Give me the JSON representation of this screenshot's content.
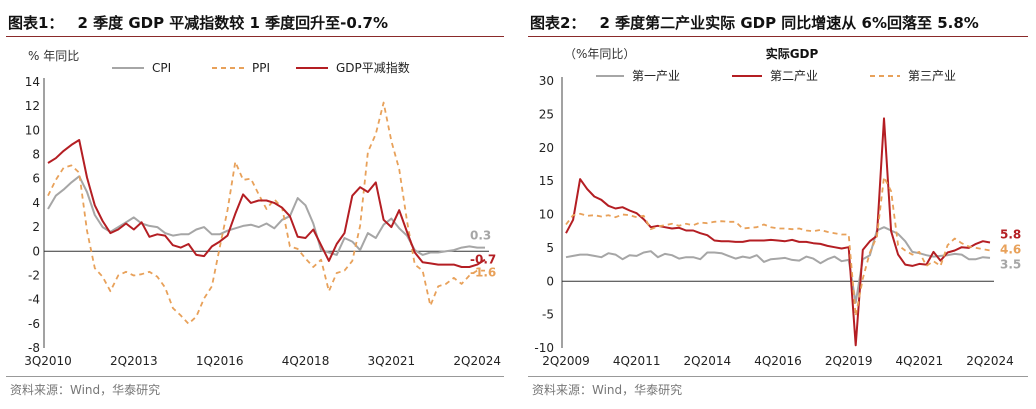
{
  "chart_data": [
    {
      "type": "line",
      "figure_label": "图表1：",
      "title": "2 季度 GDP 平减指数较 1 季度回升至-0.7%",
      "unit_label": "% 年同比",
      "source": "资料来源：Wind，华泰研究",
      "ylim": [
        -8,
        14
      ],
      "yticks": [
        "14",
        "12",
        "10",
        "8",
        "6",
        "4",
        "2",
        "0",
        "-2",
        "-4",
        "-6",
        "-8"
      ],
      "xticks": [
        "3Q2010",
        "2Q2013",
        "1Q2016",
        "4Q2018",
        "3Q2021",
        "2Q2024"
      ],
      "x_start": "3Q2010",
      "x_count": 57,
      "series": [
        {
          "name": "CPI",
          "color": "#a6a6a6",
          "dash": "solid",
          "values": [
            3.5,
            4.6,
            5.1,
            5.7,
            6.2,
            4.9,
            3.0,
            2.0,
            1.6,
            2.0,
            2.4,
            2.8,
            2.3,
            2.1,
            2.0,
            1.5,
            1.3,
            1.4,
            1.4,
            1.8,
            2.0,
            1.4,
            1.4,
            1.7,
            1.9,
            2.1,
            2.2,
            2.0,
            2.3,
            1.9,
            2.6,
            2.9,
            4.4,
            3.8,
            2.3,
            0.1,
            -0.1,
            -0.3,
            1.1,
            0.8,
            0.1,
            1.5,
            1.1,
            2.2,
            2.7,
            1.9,
            1.3,
            0.1,
            -0.3,
            -0.1,
            -0.1,
            0.0,
            0.1,
            0.3,
            0.4,
            0.3,
            0.3
          ],
          "end_label": "0.3"
        },
        {
          "name": "PPI",
          "color": "#e8a15a",
          "dash": "dashed",
          "values": [
            4.6,
            5.9,
            6.9,
            7.1,
            6.5,
            1.7,
            -1.4,
            -2.1,
            -3.3,
            -2.0,
            -1.7,
            -2.0,
            -1.9,
            -1.7,
            -2.1,
            -3.0,
            -4.7,
            -5.3,
            -6.0,
            -5.4,
            -3.9,
            -2.9,
            0.3,
            3.4,
            7.4,
            5.9,
            6.0,
            4.7,
            3.5,
            4.3,
            3.6,
            0.4,
            0.2,
            -0.6,
            -1.3,
            -0.7,
            -3.3,
            -1.8,
            -1.6,
            -0.8,
            2.1,
            8.2,
            9.7,
            12.3,
            9.1,
            6.8,
            2.5,
            -1.1,
            -1.6,
            -4.5,
            -2.9,
            -2.7,
            -2.2,
            -2.7,
            -2.0,
            -1.6,
            -1.6
          ],
          "end_label": "-1.6"
        },
        {
          "name": "GDP平减指数",
          "color": "#b41e23",
          "dash": "solid",
          "values": [
            7.3,
            7.7,
            8.3,
            8.8,
            9.2,
            6.1,
            3.8,
            2.5,
            1.5,
            1.8,
            2.3,
            1.8,
            2.4,
            1.2,
            1.4,
            1.3,
            0.5,
            0.3,
            0.6,
            -0.3,
            -0.4,
            0.4,
            0.8,
            1.3,
            3.1,
            4.7,
            4.0,
            4.2,
            4.2,
            4.0,
            3.6,
            2.9,
            1.2,
            1.1,
            1.8,
            0.5,
            -0.8,
            0.6,
            1.5,
            4.6,
            5.3,
            4.9,
            5.7,
            2.6,
            2.0,
            3.4,
            1.6,
            -0.1,
            -0.9,
            -1.0,
            -1.1,
            -1.1,
            -1.1,
            -1.3,
            -1.3,
            -1.1,
            -0.7
          ],
          "end_label": "-0.7"
        }
      ]
    },
    {
      "type": "line",
      "figure_label": "图表2：",
      "title": "2 季度第二产业实际 GDP 同比增速从 6%回落至 5.8%",
      "unit_label": "（%年同比）",
      "inner_title": "实际GDP",
      "source": "资料来源：Wind，华泰研究",
      "ylim": [
        -10,
        30
      ],
      "yticks": [
        "30",
        "25",
        "20",
        "15",
        "10",
        "5",
        "0",
        "-5",
        "-10"
      ],
      "xticks": [
        "2Q2009",
        "4Q2011",
        "2Q2014",
        "4Q2016",
        "2Q2019",
        "4Q2021",
        "2Q2024"
      ],
      "x_start": "2Q2009",
      "x_count": 61,
      "series": [
        {
          "name": "第一产业",
          "color": "#a6a6a6",
          "dash": "solid",
          "values": [
            3.6,
            3.8,
            4.0,
            4.0,
            3.8,
            3.6,
            4.2,
            4.0,
            3.3,
            3.9,
            3.8,
            4.3,
            4.5,
            3.6,
            4.1,
            3.9,
            3.4,
            3.6,
            3.6,
            3.3,
            4.3,
            4.3,
            4.2,
            3.8,
            3.4,
            3.7,
            3.5,
            3.9,
            2.9,
            3.3,
            3.4,
            3.5,
            3.2,
            3.1,
            3.7,
            3.4,
            2.7,
            3.3,
            3.7,
            3.0,
            3.2,
            -3.2,
            3.3,
            3.9,
            7.6,
            8.1,
            7.6,
            7.1,
            6.0,
            4.4,
            4.2,
            3.9,
            3.7,
            3.8,
            3.9,
            4.1,
            4.0,
            3.3,
            3.3,
            3.6,
            3.5
          ],
          "end_label": "3.5"
        },
        {
          "name": "第二产业",
          "color": "#b41e23",
          "dash": "solid",
          "values": [
            7.2,
            9.2,
            15.3,
            13.8,
            12.7,
            12.2,
            11.3,
            10.9,
            11.1,
            10.6,
            10.2,
            9.3,
            8.1,
            8.3,
            8.1,
            7.9,
            8.0,
            7.6,
            7.6,
            7.2,
            6.9,
            6.1,
            6.0,
            6.0,
            5.9,
            5.9,
            6.1,
            6.1,
            6.1,
            6.2,
            6.1,
            6.0,
            6.2,
            5.9,
            5.9,
            5.7,
            5.6,
            5.3,
            5.1,
            4.9,
            5.1,
            -9.6,
            4.7,
            6.0,
            6.8,
            24.4,
            7.5,
            4.0,
            2.5,
            2.3,
            2.6,
            2.5,
            4.4,
            3.1,
            4.3,
            4.6,
            5.1,
            5.0,
            5.6,
            6.0,
            5.8
          ],
          "end_label": "5.8"
        },
        {
          "name": "第三产业",
          "color": "#e8a15a",
          "dash": "dashed",
          "values": [
            8.5,
            9.9,
            10.1,
            9.8,
            9.9,
            9.7,
            9.9,
            9.6,
            10.0,
            9.9,
            9.6,
            9.8,
            7.8,
            8.2,
            8.4,
            8.6,
            8.3,
            8.6,
            8.4,
            8.8,
            8.7,
            8.9,
            9.0,
            8.9,
            8.9,
            7.9,
            8.0,
            8.1,
            8.5,
            8.1,
            7.9,
            7.9,
            7.8,
            7.9,
            7.6,
            7.5,
            7.7,
            7.4,
            7.2,
            7.0,
            7.0,
            -5.2,
            0.4,
            4.3,
            6.7,
            15.6,
            13.5,
            5.4,
            4.6,
            4.0,
            4.4,
            2.3,
            3.0,
            2.3,
            5.4,
            6.4,
            5.7,
            5.2,
            5.0,
            4.8,
            4.6
          ],
          "end_label": "4.6"
        }
      ]
    }
  ]
}
